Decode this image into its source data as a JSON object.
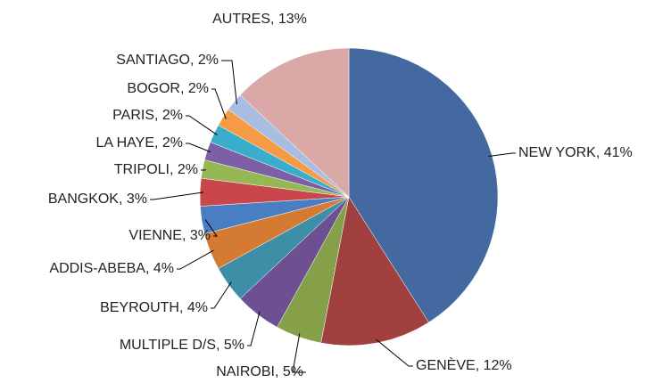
{
  "chart_data": {
    "type": "pie",
    "values": [
      41,
      12,
      5,
      5,
      4,
      4,
      3,
      3,
      2,
      2,
      2,
      2,
      2,
      13
    ],
    "value_labels": [
      "NEW YORK, 41%",
      "GENÈVE,  12%",
      "NAIROBI, 5%",
      "MULTIPLE D/S, 5%",
      "BEYROUTH, 4%",
      "ADDIS-ABEBA, 4%",
      "VIENNE,  3%",
      "BANGKOK, 3%",
      "TRIPOLI, 2%",
      "LA HAYE, 2%",
      "PARIS, 2%",
      "BOGOR, 2%",
      "SANTIAGO, 2%",
      "AUTRES, 13%"
    ],
    "colors": [
      "#4369a0",
      "#a0413f",
      "#86a04a",
      "#6c5092",
      "#3d8ea6",
      "#d47a32",
      "#4a7ec2",
      "#c9474a",
      "#95b855",
      "#7d5fa6",
      "#3aaccc",
      "#f59a45",
      "#a8bde0",
      "#dba8a8"
    ]
  }
}
